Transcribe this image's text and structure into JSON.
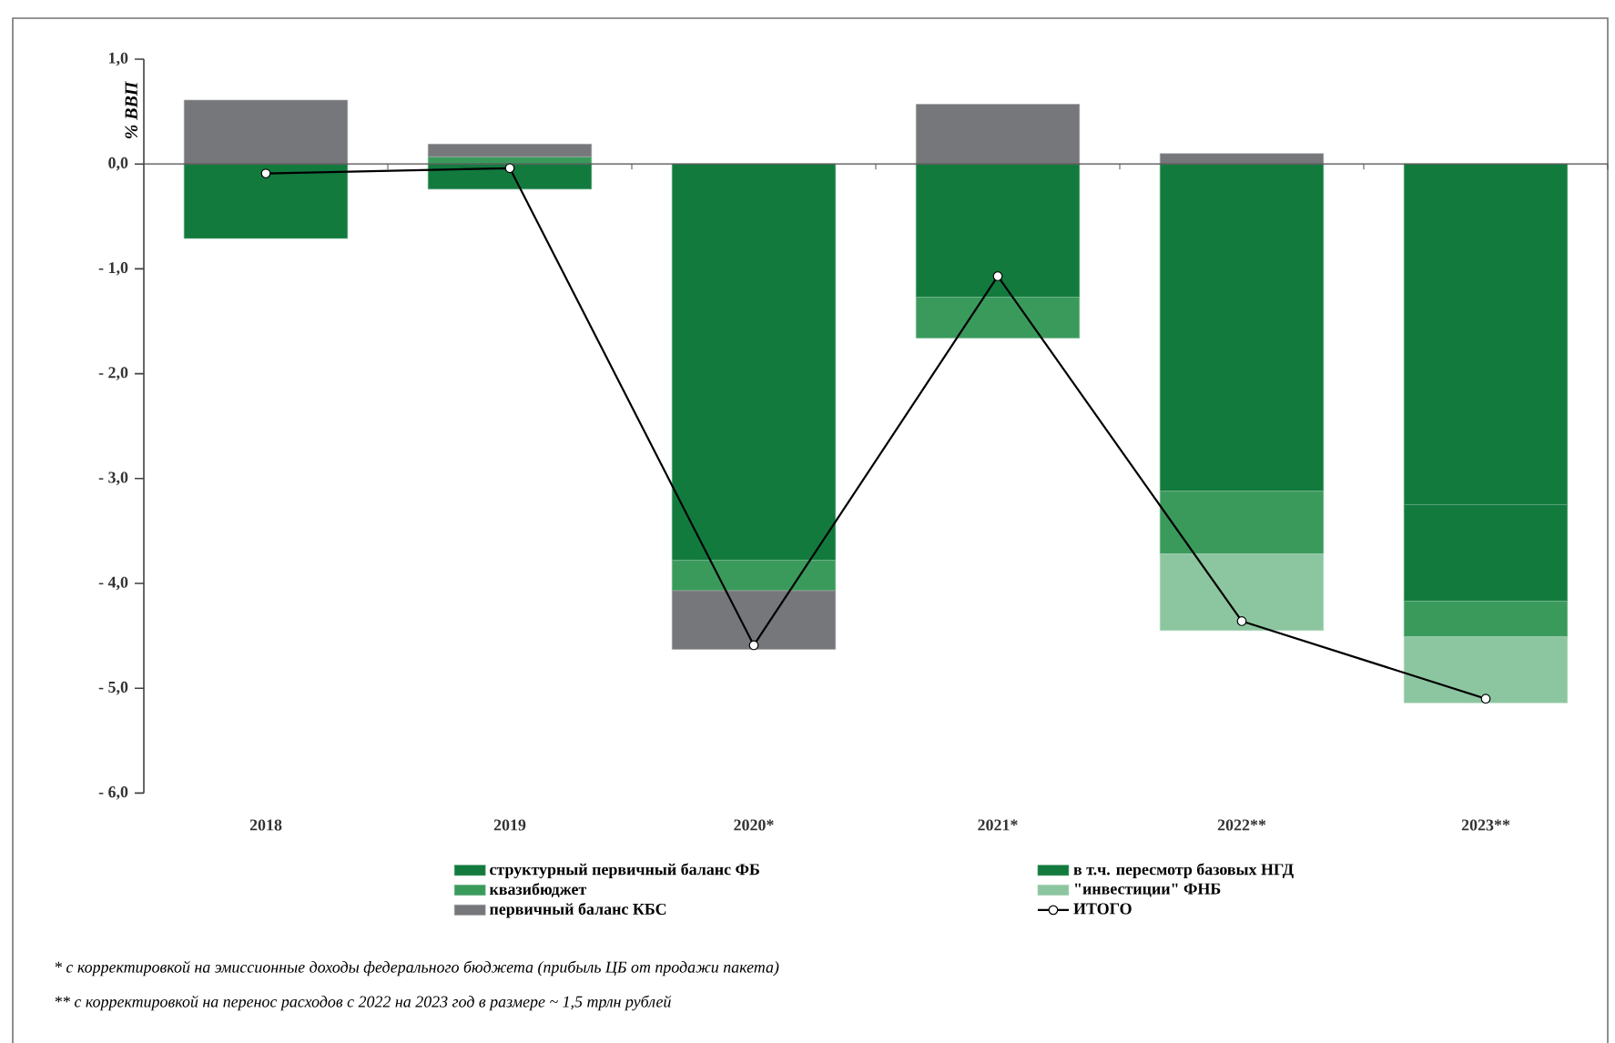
{
  "chart_data": {
    "type": "bar",
    "stacked": true,
    "ylabel": "% ВВП",
    "categories": [
      "2018",
      "2019",
      "2020*",
      "2021*",
      "2022**",
      "2023**"
    ],
    "series": [
      {
        "name": "структурный первичный баланс ФБ",
        "color": "#137a3e",
        "values": [
          -0.71,
          -0.24,
          -3.78,
          -1.27,
          -3.12,
          -3.25
        ]
      },
      {
        "name": "в т.ч. пересмотр базовых НГД",
        "color": "#137a3e",
        "values": [
          null,
          null,
          null,
          null,
          null,
          -0.92
        ]
      },
      {
        "name": "квазибюджет",
        "color": "#3a9a5c",
        "values": [
          null,
          0.07,
          -0.29,
          -0.39,
          -0.6,
          -0.34
        ]
      },
      {
        "name": "\"инвестиции\" ФНБ",
        "color": "#8cc6a0",
        "values": [
          null,
          null,
          null,
          null,
          -0.73,
          -0.63
        ]
      },
      {
        "name": "первичный баланс КБС",
        "color": "#76777a",
        "values": [
          0.61,
          0.12,
          -0.56,
          0.57,
          0.1,
          null
        ]
      },
      {
        "name": "ИТОГО",
        "type": "line",
        "color": "#000000",
        "values": [
          -0.09,
          -0.04,
          -4.59,
          -1.07,
          -4.36,
          -5.1
        ]
      }
    ],
    "marker": "circle",
    "legend": "bottom",
    "ylim": [
      -6,
      1
    ],
    "yticks": [
      {
        "value": 1,
        "label": "1,0"
      },
      {
        "value": 0,
        "label": "0,0"
      },
      {
        "value": -1,
        "label": "- 1,0"
      },
      {
        "value": -2,
        "label": "- 2,0"
      },
      {
        "value": -3,
        "label": "- 3,0"
      },
      {
        "value": -4,
        "label": "- 4,0"
      },
      {
        "value": -5,
        "label": "- 5,0"
      },
      {
        "value": -6,
        "label": "- 6,0"
      }
    ],
    "annotations": [
      "* с корректировкой на эмиссионные доходы федерального бюджета (прибыль ЦБ от продажи пакета)",
      "** с корректировкой на перенос расходов с 2022 на 2023 год в размере ~ 1,5 трлн рублей"
    ]
  }
}
